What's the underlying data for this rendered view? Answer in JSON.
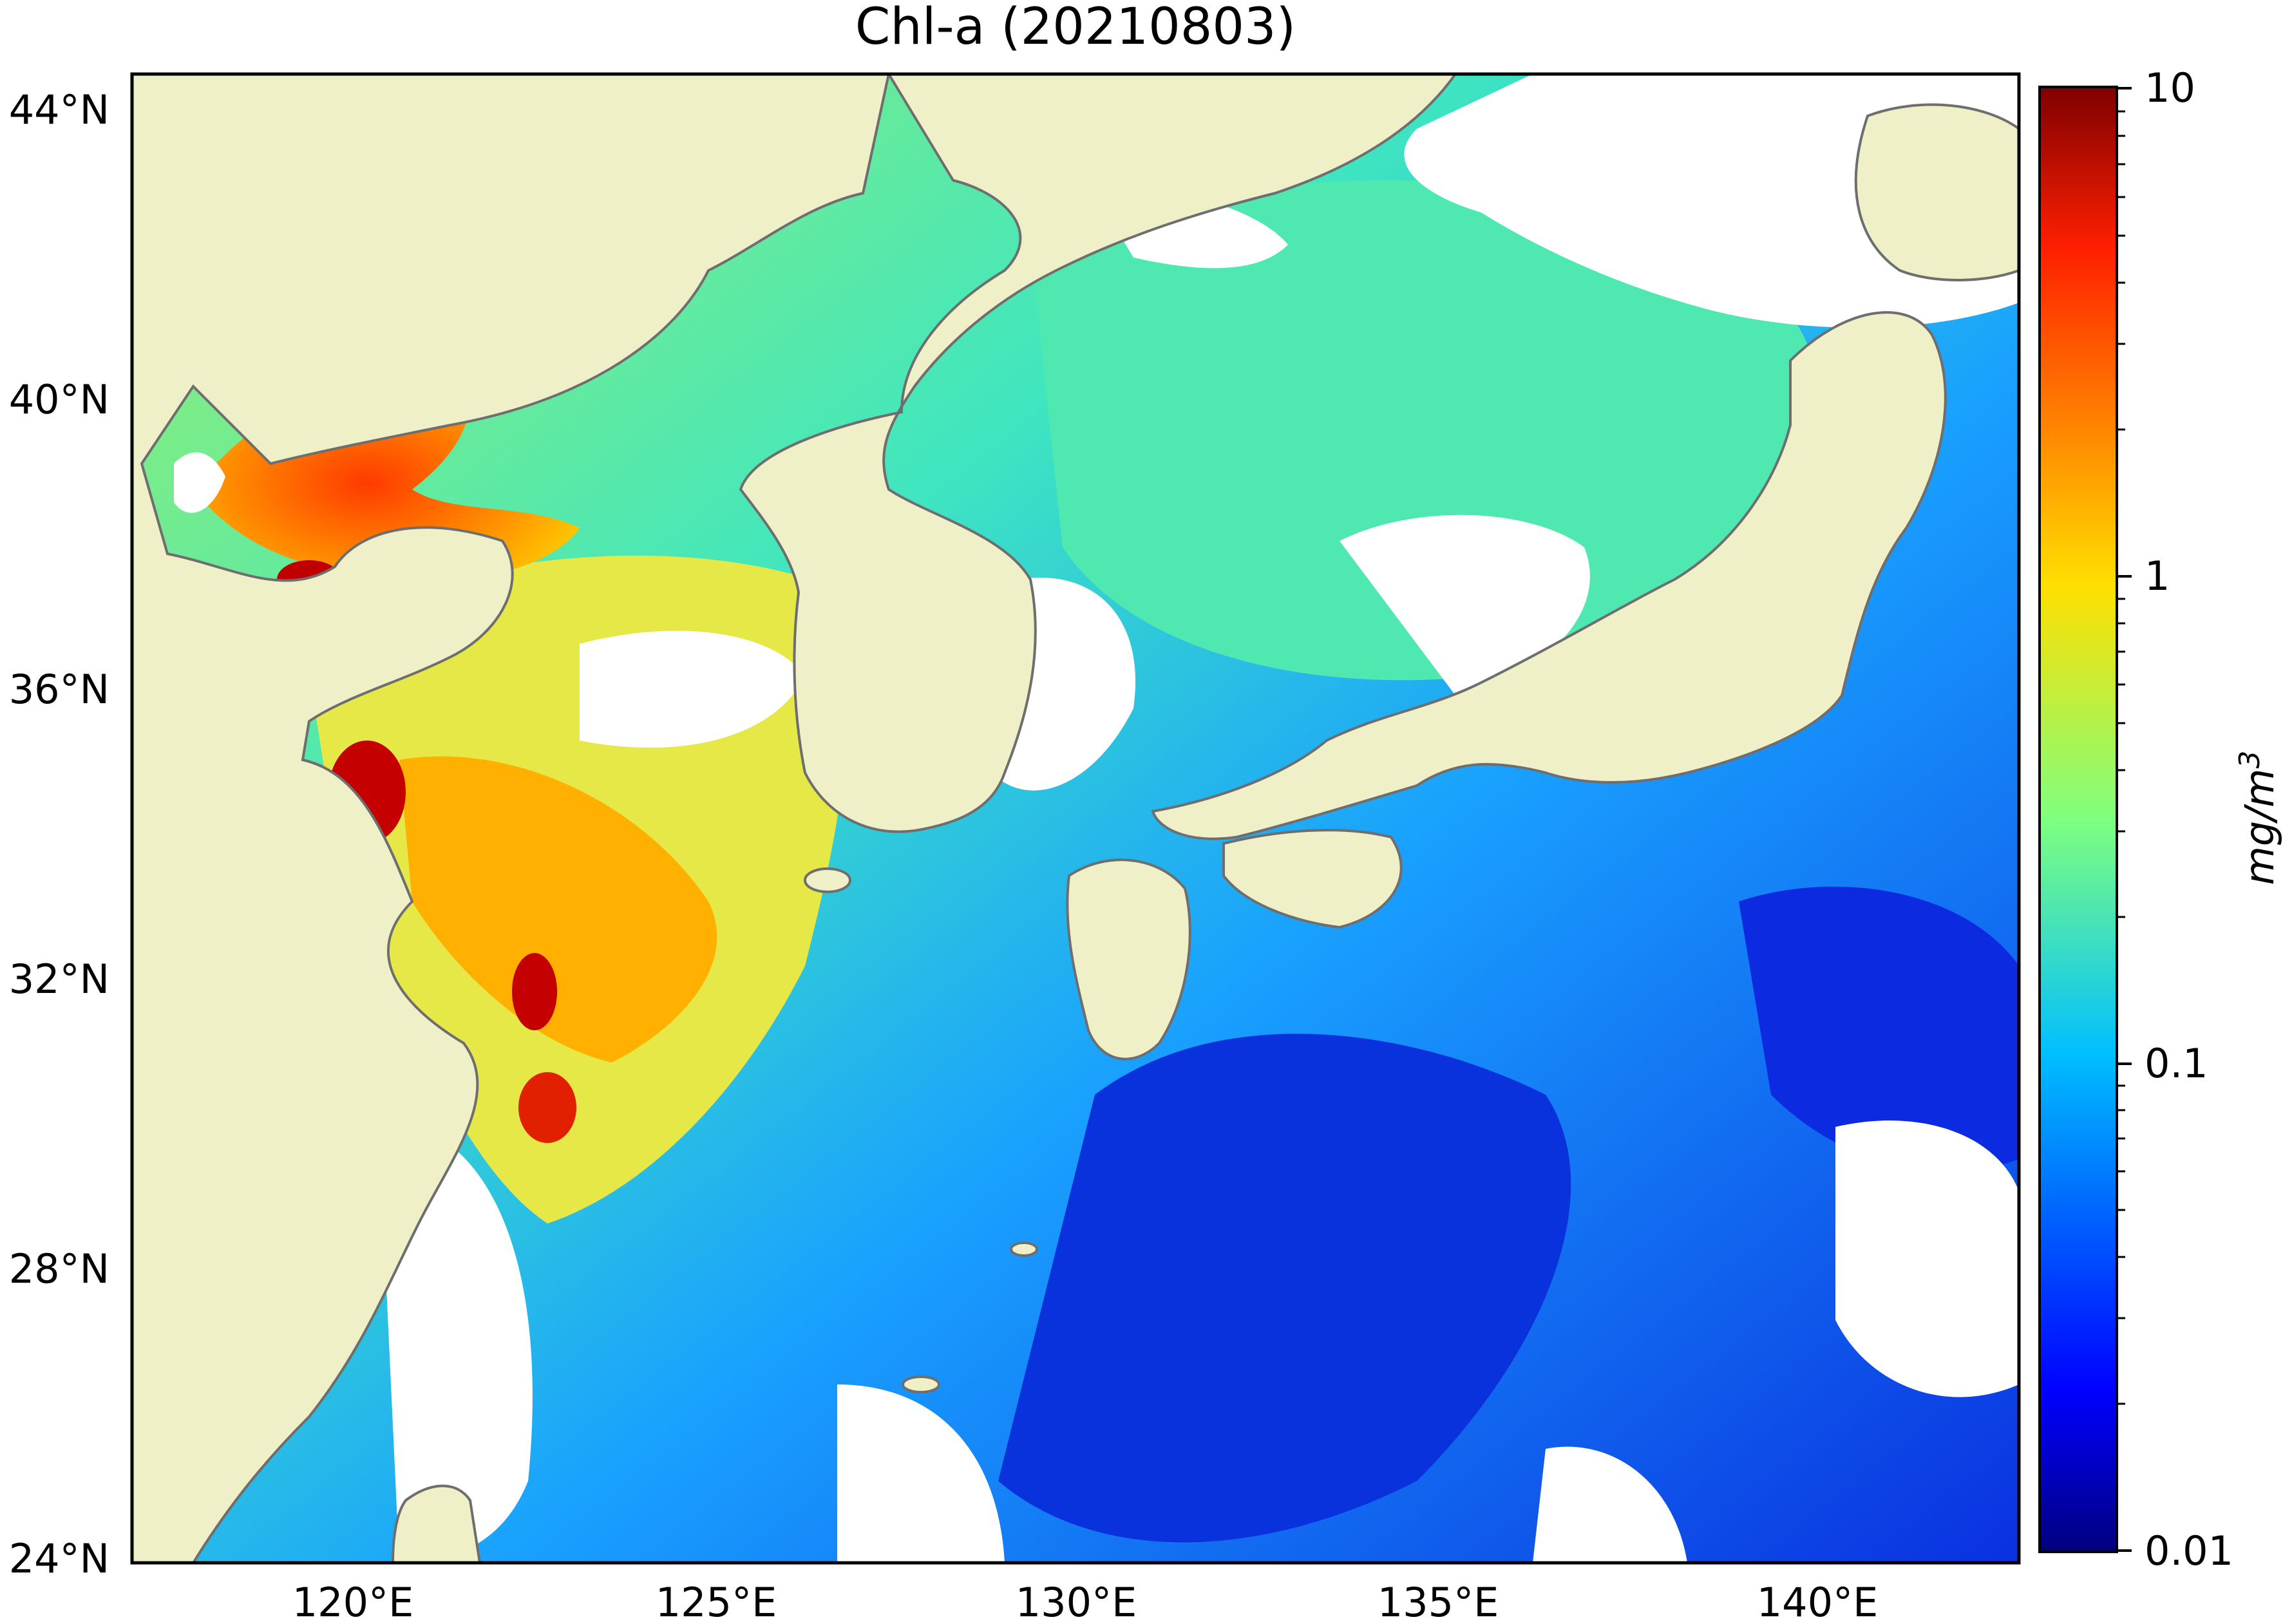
{
  "map": {
    "title": "Chl-a (20210803)",
    "lat_ticks": [
      "44°N",
      "40°N",
      "36°N",
      "32°N",
      "28°N",
      "24°N"
    ],
    "lon_ticks": [
      "120°E",
      "125°E",
      "130°E",
      "135°E",
      "140°E"
    ],
    "extent": {
      "lon": [
        116.5,
        143.0
      ],
      "lat": [
        24.0,
        44.5
      ]
    },
    "colors": {
      "land": "#f0f0c8",
      "coastline": "#6e6e6e",
      "no_data": "#ffffff",
      "frame": "#000000"
    }
  },
  "colorbar": {
    "label": "mg/m",
    "label_superscript": "3",
    "scale": "log",
    "range": [
      0.01,
      10
    ],
    "colormap": "jet",
    "ticks": [
      "10",
      "1",
      "0.1",
      "0.01"
    ]
  }
}
